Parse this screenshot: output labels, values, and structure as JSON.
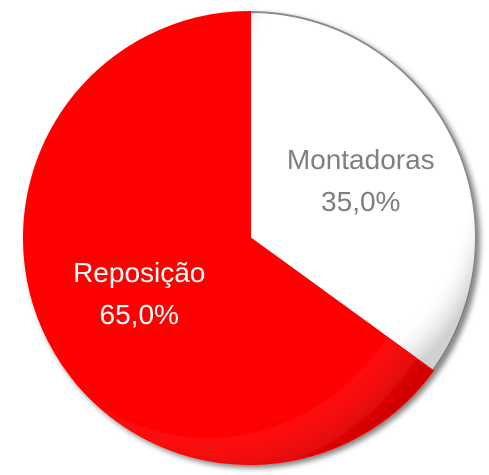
{
  "chart_data": {
    "type": "pie",
    "categories": [
      "Montadoras",
      "Reposição"
    ],
    "values": [
      35.0,
      65.0
    ],
    "value_labels": [
      "35,0%",
      "65,0%"
    ],
    "colors": [
      "#ffffff",
      "#ff0000"
    ],
    "label_colors": [
      "#7f7f7f",
      "#ffffff"
    ]
  }
}
